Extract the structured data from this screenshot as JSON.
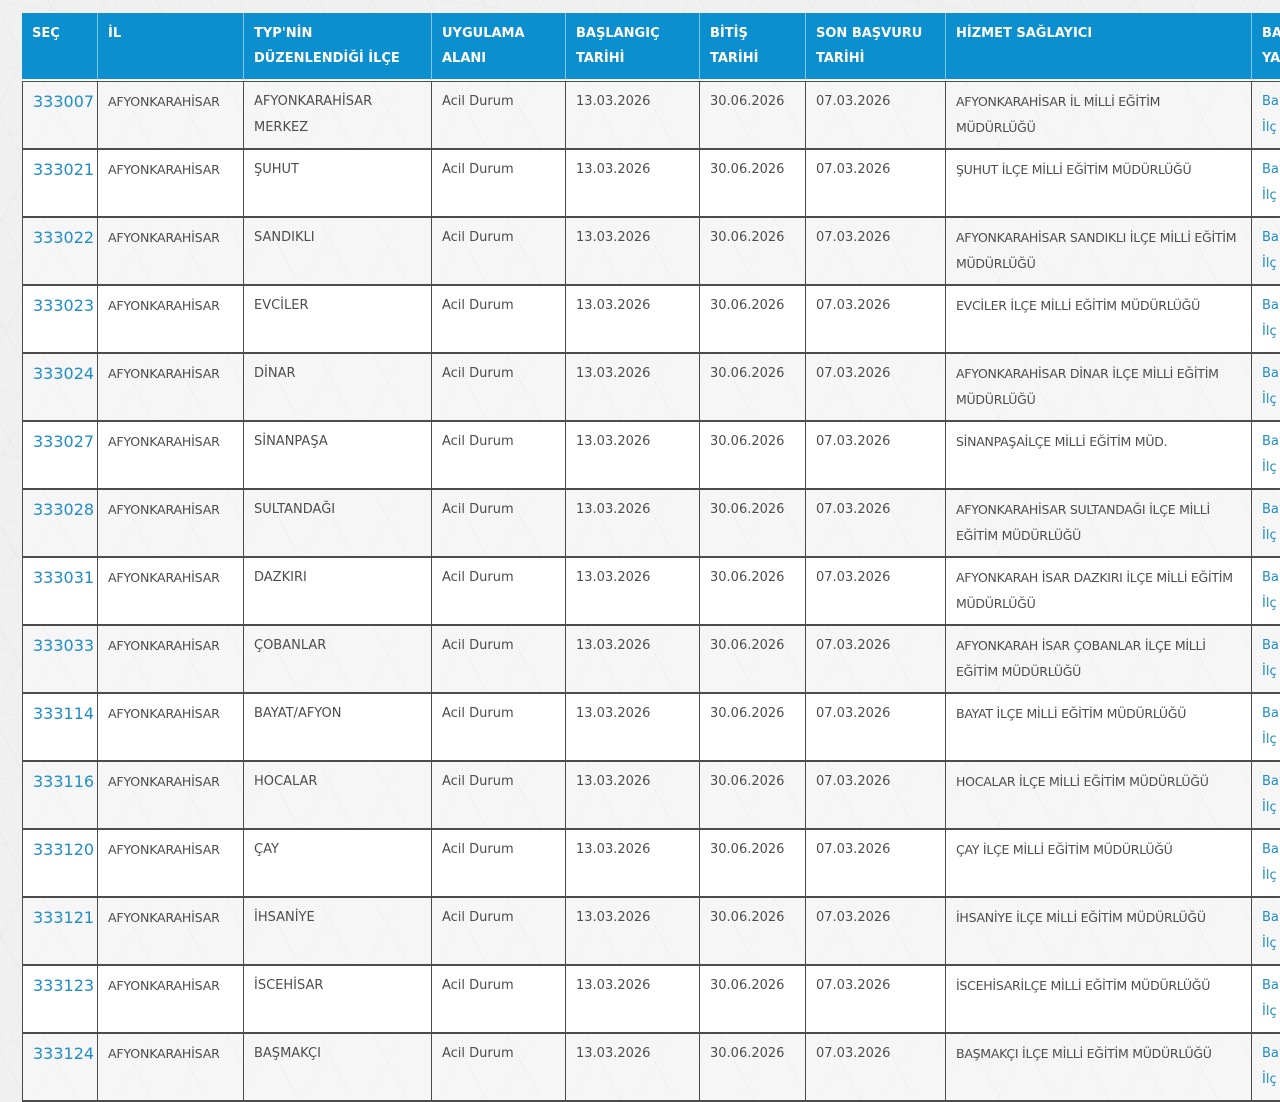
{
  "page": {
    "background_color": "#eff0ef"
  },
  "table": {
    "colors": {
      "header_bg": "#0b8fce",
      "header_text": "#ffffff",
      "link": "#1f8dc8",
      "cell_text": "#4d4d4d",
      "border": "#4c4c4c",
      "row_even_bg": "#f6f6f6",
      "row_odd_bg": "#ffffff"
    },
    "columns": [
      {
        "id": "sec",
        "label": "SEÇ"
      },
      {
        "id": "il",
        "label": "İL"
      },
      {
        "id": "ilce",
        "label": "TYP'NİN\nDÜZENLENDİĞİ İLÇE"
      },
      {
        "id": "uygulama_alani",
        "label": "UYGULAMA\nALANI"
      },
      {
        "id": "baslangic_tarihi",
        "label": "BAŞLANGIÇ\nTARİHİ"
      },
      {
        "id": "bitis_tarihi",
        "label": "BİTİŞ\nTARİHİ"
      },
      {
        "id": "son_basvuru_tarihi",
        "label": "SON BAŞVURU\nTARİHİ"
      },
      {
        "id": "hizmet_saglayici",
        "label": "HİZMET SAĞLAYICI"
      },
      {
        "id": "basvuru",
        "label": "BA\nYA"
      }
    ],
    "action_links": {
      "line1": "Ba",
      "line2": "İlç"
    },
    "rows": [
      {
        "id": "333007",
        "il": "AFYONKARAHİSAR",
        "ilce": "AFYONKARAHİSAR MERKEZ",
        "uygulama_alani": "Acil Durum",
        "baslangic_tarihi": "13.03.2026",
        "bitis_tarihi": "30.06.2026",
        "son_basvuru_tarihi": "07.03.2026",
        "hizmet_saglayici": "AFYONKARAHİSAR İL MİLLİ EĞİTİM MÜDÜRLÜĞÜ"
      },
      {
        "id": "333021",
        "il": "AFYONKARAHİSAR",
        "ilce": "ŞUHUT",
        "uygulama_alani": "Acil Durum",
        "baslangic_tarihi": "13.03.2026",
        "bitis_tarihi": "30.06.2026",
        "son_basvuru_tarihi": "07.03.2026",
        "hizmet_saglayici": "ŞUHUT İLÇE MİLLİ EĞİTİM MÜDÜRLÜĞÜ"
      },
      {
        "id": "333022",
        "il": "AFYONKARAHİSAR",
        "ilce": "SANDIKLI",
        "uygulama_alani": "Acil Durum",
        "baslangic_tarihi": "13.03.2026",
        "bitis_tarihi": "30.06.2026",
        "son_basvuru_tarihi": "07.03.2026",
        "hizmet_saglayici": "AFYONKARAHİSAR SANDIKLI İLÇE MİLLİ EĞİTİM MÜDÜRLÜĞÜ"
      },
      {
        "id": "333023",
        "il": "AFYONKARAHİSAR",
        "ilce": "EVCİLER",
        "uygulama_alani": "Acil Durum",
        "baslangic_tarihi": "13.03.2026",
        "bitis_tarihi": "30.06.2026",
        "son_basvuru_tarihi": "07.03.2026",
        "hizmet_saglayici": "EVCİLER İLÇE MİLLİ EĞİTİM MÜDÜRLÜĞÜ"
      },
      {
        "id": "333024",
        "il": "AFYONKARAHİSAR",
        "ilce": "DİNAR",
        "uygulama_alani": "Acil Durum",
        "baslangic_tarihi": "13.03.2026",
        "bitis_tarihi": "30.06.2026",
        "son_basvuru_tarihi": "07.03.2026",
        "hizmet_saglayici": "AFYONKARAHİSAR DİNAR İLÇE MİLLİ EĞİTİM MÜDÜRLÜĞÜ"
      },
      {
        "id": "333027",
        "il": "AFYONKARAHİSAR",
        "ilce": "SİNANPAŞA",
        "uygulama_alani": "Acil Durum",
        "baslangic_tarihi": "13.03.2026",
        "bitis_tarihi": "30.06.2026",
        "son_basvuru_tarihi": "07.03.2026",
        "hizmet_saglayici": "SİNANPAŞAİLÇE MİLLİ EĞİTİM MÜD."
      },
      {
        "id": "333028",
        "il": "AFYONKARAHİSAR",
        "ilce": "SULTANDAĞI",
        "uygulama_alani": "Acil Durum",
        "baslangic_tarihi": "13.03.2026",
        "bitis_tarihi": "30.06.2026",
        "son_basvuru_tarihi": "07.03.2026",
        "hizmet_saglayici": "AFYONKARAHİSAR SULTANDAĞI İLÇE MİLLİ EĞİTİM MÜDÜRLÜĞÜ"
      },
      {
        "id": "333031",
        "il": "AFYONKARAHİSAR",
        "ilce": "DAZKIRI",
        "uygulama_alani": "Acil Durum",
        "baslangic_tarihi": "13.03.2026",
        "bitis_tarihi": "30.06.2026",
        "son_basvuru_tarihi": "07.03.2026",
        "hizmet_saglayici": "AFYONKARAH İSAR DAZKIRI İLÇE MİLLİ EĞİTİM MÜDÜRLÜĞÜ"
      },
      {
        "id": "333033",
        "il": "AFYONKARAHİSAR",
        "ilce": "ÇOBANLAR",
        "uygulama_alani": "Acil Durum",
        "baslangic_tarihi": "13.03.2026",
        "bitis_tarihi": "30.06.2026",
        "son_basvuru_tarihi": "07.03.2026",
        "hizmet_saglayici": "AFYONKARAH İSAR ÇOBANLAR İLÇE MİLLİ EĞİTİM MÜDÜRLÜĞÜ"
      },
      {
        "id": "333114",
        "il": "AFYONKARAHİSAR",
        "ilce": "BAYAT/AFYON",
        "uygulama_alani": "Acil Durum",
        "baslangic_tarihi": "13.03.2026",
        "bitis_tarihi": "30.06.2026",
        "son_basvuru_tarihi": "07.03.2026",
        "hizmet_saglayici": "BAYAT İLÇE MİLLİ EĞİTİM MÜDÜRLÜĞÜ"
      },
      {
        "id": "333116",
        "il": "AFYONKARAHİSAR",
        "ilce": "HOCALAR",
        "uygulama_alani": "Acil Durum",
        "baslangic_tarihi": "13.03.2026",
        "bitis_tarihi": "30.06.2026",
        "son_basvuru_tarihi": "07.03.2026",
        "hizmet_saglayici": "HOCALAR İLÇE MİLLİ EĞİTİM MÜDÜRLÜĞÜ"
      },
      {
        "id": "333120",
        "il": "AFYONKARAHİSAR",
        "ilce": "ÇAY",
        "uygulama_alani": "Acil Durum",
        "baslangic_tarihi": "13.03.2026",
        "bitis_tarihi": "30.06.2026",
        "son_basvuru_tarihi": "07.03.2026",
        "hizmet_saglayici": "ÇAY İLÇE MİLLİ EĞİTİM MÜDÜRLÜĞÜ"
      },
      {
        "id": "333121",
        "il": "AFYONKARAHİSAR",
        "ilce": "İHSANİYE",
        "uygulama_alani": "Acil Durum",
        "baslangic_tarihi": "13.03.2026",
        "bitis_tarihi": "30.06.2026",
        "son_basvuru_tarihi": "07.03.2026",
        "hizmet_saglayici": "İHSANİYE İLÇE MİLLİ EĞİTİM MÜDÜRLÜĞÜ"
      },
      {
        "id": "333123",
        "il": "AFYONKARAHİSAR",
        "ilce": "İSCEHİSAR",
        "uygulama_alani": "Acil Durum",
        "baslangic_tarihi": "13.03.2026",
        "bitis_tarihi": "30.06.2026",
        "son_basvuru_tarihi": "07.03.2026",
        "hizmet_saglayici": "İSCEHİSARİLÇE MİLLİ EĞİTİM MÜDÜRLÜĞÜ"
      },
      {
        "id": "333124",
        "il": "AFYONKARAHİSAR",
        "ilce": "BAŞMAKÇI",
        "uygulama_alani": "Acil Durum",
        "baslangic_tarihi": "13.03.2026",
        "bitis_tarihi": "30.06.2026",
        "son_basvuru_tarihi": "07.03.2026",
        "hizmet_saglayici": "BAŞMAKÇI İLÇE MİLLİ EĞİTİM MÜDÜRLÜĞÜ"
      }
    ]
  }
}
